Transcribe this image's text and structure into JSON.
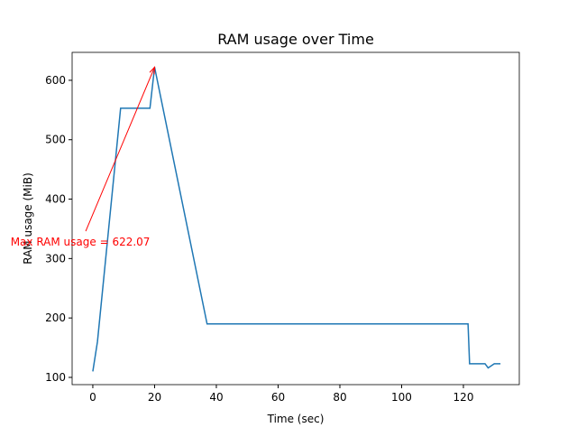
{
  "chart_data": {
    "type": "line",
    "title": "RAM usage over Time",
    "x_label": "Time (sec)",
    "y_label": "RAM usage (MiB)",
    "x": [
      0,
      1.5,
      9,
      18.5,
      20,
      37,
      121.5,
      122,
      127,
      128,
      130,
      132
    ],
    "series": [
      {
        "name": "RAM usage",
        "color": "#1f77b4",
        "values": [
          110,
          160,
          553,
          553,
          622.07,
          190,
          190,
          123,
          123,
          116,
          123,
          123
        ]
      }
    ],
    "xlim": [
      -6.7,
      138.1
    ],
    "ylim": [
      87.8,
      647
    ],
    "xticks": [
      0,
      20,
      40,
      60,
      80,
      100,
      120
    ],
    "yticks": [
      100,
      200,
      300,
      400,
      500,
      600
    ],
    "annotation": {
      "text": "Max RAM usage = 622.07",
      "color": "red",
      "xy": [
        20,
        622.07
      ],
      "xytext": [
        -2.3,
        346
      ]
    }
  }
}
